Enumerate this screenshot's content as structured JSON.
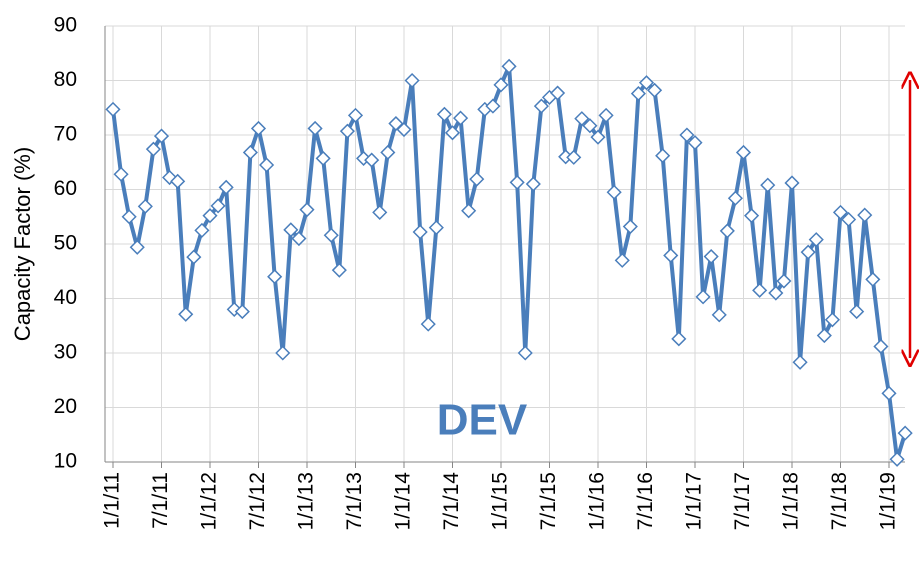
{
  "chart_data": {
    "type": "line",
    "y_label": "Capacity Factor (%)",
    "annotation": "DEV",
    "categories": [
      "1/1/11",
      null,
      null,
      null,
      null,
      null,
      "7/1/11",
      null,
      null,
      null,
      null,
      null,
      "1/1/12",
      null,
      null,
      null,
      null,
      null,
      "7/1/12",
      null,
      null,
      null,
      null,
      null,
      "1/1/13",
      null,
      null,
      null,
      null,
      null,
      "7/1/13",
      null,
      null,
      null,
      null,
      null,
      "1/1/14",
      null,
      null,
      null,
      null,
      null,
      "7/1/14",
      null,
      null,
      null,
      null,
      null,
      "1/1/15",
      null,
      null,
      null,
      null,
      null,
      "7/1/15",
      null,
      null,
      null,
      null,
      null,
      "1/1/16",
      null,
      null,
      null,
      null,
      null,
      "7/1/16",
      null,
      null,
      null,
      null,
      null,
      "1/1/17",
      null,
      null,
      null,
      null,
      null,
      "7/1/17",
      null,
      null,
      null,
      null,
      null,
      "1/1/18",
      null,
      null,
      null,
      null,
      null,
      "7/1/18",
      null,
      null,
      null,
      null,
      null,
      "1/1/19",
      null,
      null
    ],
    "values": [
      74.7,
      62.8,
      55,
      49.4,
      56.9,
      67.4,
      69.8,
      62.2,
      61.5,
      37.1,
      47.6,
      52.5,
      55.2,
      57,
      60.4,
      38,
      37.6,
      66.8,
      71.2,
      64.5,
      44,
      30,
      52.6,
      51,
      56.3,
      71.2,
      65.7,
      51.6,
      45.2,
      70.7,
      73.6,
      65.7,
      65.4,
      55.8,
      66.8,
      72.1,
      71,
      80,
      52.2,
      35.3,
      53,
      73.8,
      70.4,
      73.1,
      56.1,
      61.9,
      74.7,
      75.3,
      79.2,
      82.6,
      61.3,
      30,
      61,
      75.3,
      76.9,
      77.7,
      66,
      65.9,
      73,
      71.7,
      69.6,
      73.6,
      59.5,
      47,
      53.2,
      77.6,
      79.6,
      78.2,
      66.2,
      47.9,
      32.6,
      70,
      68.6,
      40.3,
      47.7,
      37,
      52.4,
      58.4,
      66.8,
      55.2,
      41.5,
      60.8,
      41,
      43.2,
      61.2,
      28.3,
      48.5,
      50.8,
      33.2,
      36.1,
      55.8,
      54.5,
      37.6,
      55.3,
      43.5,
      31.2,
      22.6,
      10.5,
      15.3
    ],
    "color": "#4a7ebb",
    "ylim": [
      10,
      90
    ],
    "yticks": [
      10,
      20,
      30,
      40,
      50,
      60,
      70,
      80,
      90
    ],
    "grid": true
  }
}
